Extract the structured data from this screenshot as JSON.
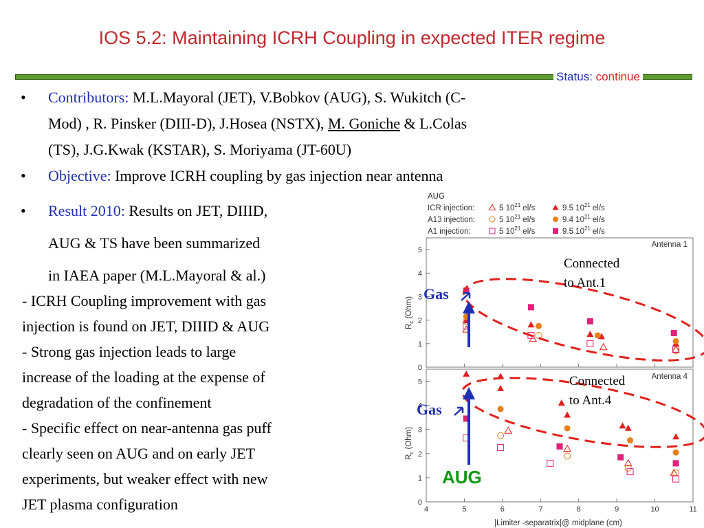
{
  "slide": {
    "title": "IOS 5.2: Maintaining ICRH Coupling in expected ITER regime",
    "status_label": "Status:",
    "status_value": "continue"
  },
  "bullets": {
    "contributors_label": "Contributors:",
    "contributors_text_1": " M.L.Mayoral (JET), V.Bobkov (AUG), S. Wukitch (C-",
    "contributors_text_2": "Mod) , R. Pinsker (DIII-D), J.Hosea (NSTX), ",
    "contributors_underlined": "M. Goniche",
    "contributors_text_3": " & L.Colas",
    "contributors_text_4": "(TS), J.G.Kwak (KSTAR), S. Moriyama (JT-60U)",
    "objective_label": "Objective:",
    "objective_text": " Improve ICRH coupling by gas injection near antenna",
    "result_label": "Result 2010:",
    "result_text_1": " Results on JET, DIIID,",
    "result_text_2": "AUG & TS  have been summarized",
    "result_text_3": "in IAEA paper (M.L.Mayoral & al.)"
  },
  "body_lines": [
    "- ICRH Coupling improvement with gas",
    "injection is found on JET, DIIID & AUG",
    "- Strong gas injection leads to large",
    "increase of the loading at the expense of",
    "degradation of the confinement",
    "- Specific effect on near-antenna gas puff",
    "clearly seen on AUG and on early JET",
    "experiments, but weaker effect with new",
    "JET plasma configuration"
  ],
  "annotations": {
    "connected1_a": "Connected",
    "connected1_b": "to Ant.1",
    "connected4_a": "Connected",
    "connected4_b": "to Ant.4",
    "gas": "Gas",
    "aug": "AUG"
  },
  "colors": {
    "title": "#c0282d",
    "rule": "#5f9a2d",
    "label_blue": "#1f2fb5",
    "status_value": "#e0211f",
    "icr": "#e02020",
    "a13": "#e8801a",
    "a1": "#e0207a",
    "ellipse": "#e0201a",
    "aug_text": "#119911"
  },
  "chart_data": {
    "type": "scatter",
    "title": "AUG",
    "legend": [
      {
        "label": "ICR injection:",
        "low": "5 10",
        "high": "9.5 10",
        "exp": "21",
        "unit": "el/s",
        "series": "ICR"
      },
      {
        "label": "A13 injection:",
        "low": "5 10",
        "high": "9.4 10",
        "exp": "21",
        "unit": "el/s",
        "series": "A13"
      },
      {
        "label": "A1 injection:",
        "low": "5 10",
        "high": "9.5 10",
        "exp": "21",
        "unit": "el/s",
        "series": "A1"
      }
    ],
    "xlabel": "|Limiter -separatrix|@ midplane (cm)",
    "ylabel_main": "R",
    "ylabel_sub": "c",
    "ylabel_unit": " (Ohm)",
    "xlim": [
      4,
      11
    ],
    "xticks": [
      4,
      5,
      6,
      7,
      8,
      9,
      10,
      11
    ],
    "ylim": [
      0,
      5.5
    ],
    "yticks": [
      0,
      1,
      2,
      3,
      4,
      5
    ],
    "grid": false,
    "panels": [
      {
        "name": "Antenna 1",
        "series": [
          {
            "name": "ICR",
            "rate": "high",
            "marker": "triangle",
            "filled": true,
            "x": [
              5.05,
              5.05,
              6.75,
              8.3,
              8.6,
              10.55
            ],
            "y": [
              2.4,
              2.0,
              1.8,
              1.4,
              1.3,
              1.0
            ]
          },
          {
            "name": "ICR",
            "rate": "low",
            "marker": "triangle",
            "filled": false,
            "x": [
              5.05,
              6.8,
              8.65,
              10.55
            ],
            "y": [
              1.6,
              1.2,
              0.85,
              0.75
            ]
          },
          {
            "name": "A13",
            "rate": "high",
            "marker": "circle",
            "filled": true,
            "x": [
              5.05,
              6.95,
              8.5,
              10.55
            ],
            "y": [
              2.15,
              1.75,
              1.35,
              1.1
            ]
          },
          {
            "name": "A13",
            "rate": "low",
            "marker": "circle",
            "filled": false,
            "x": [
              5.05,
              6.95,
              10.55
            ],
            "y": [
              1.95,
              1.35,
              0.7
            ]
          },
          {
            "name": "A1",
            "rate": "high",
            "marker": "square",
            "filled": true,
            "x": [
              5.05,
              6.75,
              8.3,
              10.5
            ],
            "y": [
              3.25,
              2.55,
              1.95,
              1.45
            ]
          },
          {
            "name": "A1",
            "rate": "low",
            "marker": "square",
            "filled": false,
            "x": [
              5.05,
              6.75,
              8.3,
              10.55
            ],
            "y": [
              1.75,
              1.35,
              1.0,
              0.75
            ]
          }
        ]
      },
      {
        "name": "Antenna 4",
        "series": [
          {
            "name": "ICR",
            "rate": "high",
            "marker": "triangle",
            "filled": true,
            "x": [
              5.05,
              5.95,
              5.95,
              7.55,
              7.7,
              9.15,
              9.3,
              10.55
            ],
            "y": [
              5.3,
              5.2,
              4.7,
              4.1,
              3.6,
              3.15,
              3.05,
              2.7
            ]
          },
          {
            "name": "ICR",
            "rate": "low",
            "marker": "triangle",
            "filled": false,
            "x": [
              6.15,
              7.7,
              9.3,
              10.5
            ],
            "y": [
              2.95,
              2.2,
              1.6,
              1.2
            ]
          },
          {
            "name": "A13",
            "rate": "high",
            "marker": "circle",
            "filled": true,
            "x": [
              5.95,
              7.7,
              9.35,
              10.55
            ],
            "y": [
              3.85,
              3.05,
              2.55,
              2.05
            ]
          },
          {
            "name": "A13",
            "rate": "low",
            "marker": "circle",
            "filled": false,
            "x": [
              5.95,
              7.7,
              9.3,
              10.55
            ],
            "y": [
              2.75,
              1.9,
              1.4,
              1.2
            ]
          },
          {
            "name": "A1",
            "rate": "high",
            "marker": "square",
            "filled": true,
            "x": [
              5.05,
              7.5,
              9.1,
              10.55
            ],
            "y": [
              3.45,
              2.3,
              1.85,
              1.6
            ]
          },
          {
            "name": "A1",
            "rate": "low",
            "marker": "square",
            "filled": false,
            "x": [
              5.05,
              5.95,
              7.25,
              9.35,
              10.55
            ],
            "y": [
              2.65,
              2.25,
              1.6,
              1.25,
              0.95
            ]
          }
        ]
      }
    ]
  }
}
